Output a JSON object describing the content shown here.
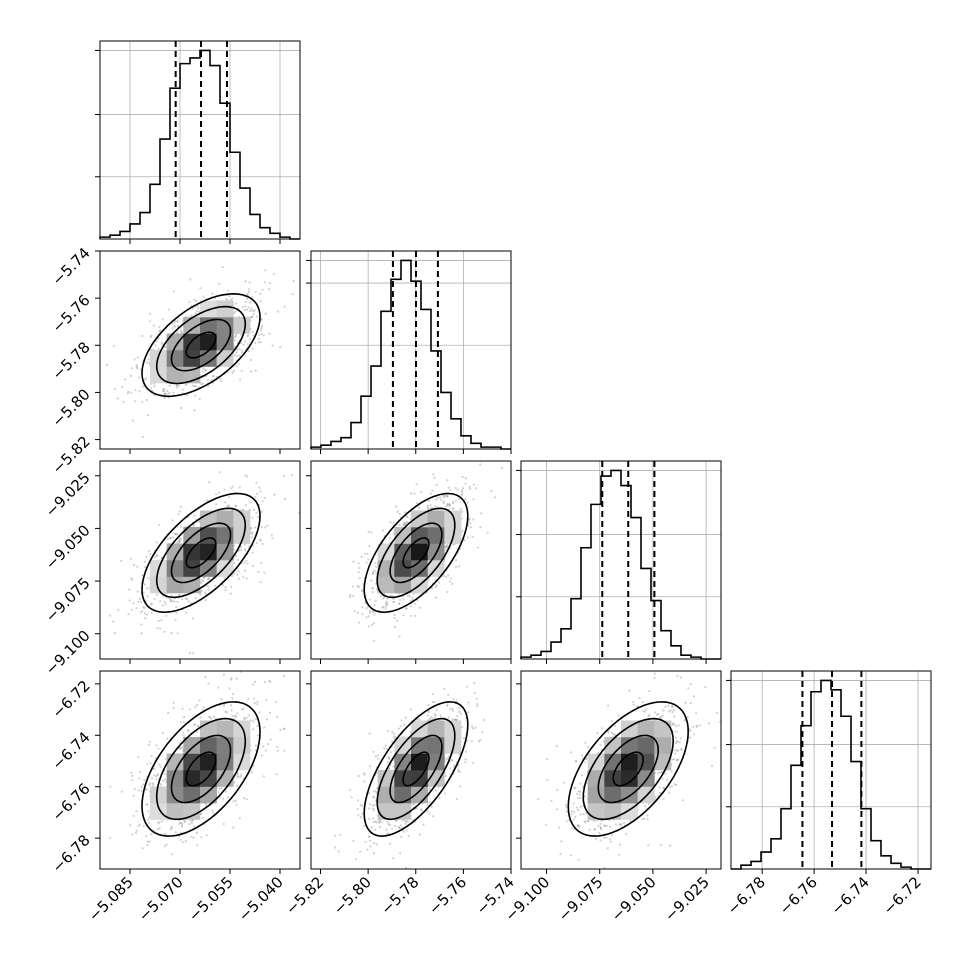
{
  "chart_data": {
    "type": "corner",
    "description_of_parameters": "four parameters (unlabeled) shown as a corner plot of 1D histograms and 2D density contours",
    "grid": true,
    "quantile_lines": "dashed",
    "parameters": [
      {
        "range": [
          -5.094,
          -5.034
        ],
        "ticks": [
          -5.085,
          -5.07,
          -5.055,
          -5.04
        ],
        "tick_labels": [
          "−5.085",
          "−5.070",
          "−5.055",
          "−5.040"
        ],
        "quantiles": [
          -5.0713,
          -5.0637,
          -5.0559
        ],
        "hist": [
          0.01,
          0.02,
          0.04,
          0.08,
          0.14,
          0.29,
          0.53,
          0.8,
          0.93,
          0.96,
          1.0,
          0.92,
          0.72,
          0.46,
          0.27,
          0.13,
          0.06,
          0.03,
          0.01,
          0.0
        ],
        "hist_ticks": [
          0.33,
          0.66
        ]
      },
      {
        "range": [
          -5.824,
          -5.74
        ],
        "ticks": [
          -5.82,
          -5.8,
          -5.78,
          -5.76,
          -5.74
        ],
        "tick_labels": [
          "−5.82",
          "−5.80",
          "−5.78",
          "−5.76",
          "−5.74"
        ],
        "quantiles": [
          -5.7896,
          -5.7799,
          -5.7707
        ],
        "hist": [
          0.01,
          0.02,
          0.04,
          0.06,
          0.14,
          0.28,
          0.44,
          0.73,
          0.9,
          1.0,
          0.89,
          0.74,
          0.52,
          0.3,
          0.16,
          0.07,
          0.03,
          0.01,
          0.01,
          0.0
        ],
        "hist_ticks": [
          0.55,
          0.88
        ]
      },
      {
        "range": [
          -9.112,
          -9.018
        ],
        "ticks": [
          -9.1,
          -9.075,
          -9.05,
          -9.025
        ],
        "tick_labels": [
          "−9.100",
          "−9.075",
          "−9.050",
          "−9.025"
        ],
        "quantiles": [
          -9.0738,
          -9.0616,
          -9.0493
        ],
        "hist": [
          0.01,
          0.02,
          0.04,
          0.09,
          0.16,
          0.32,
          0.59,
          0.82,
          0.97,
          1.0,
          0.92,
          0.75,
          0.48,
          0.31,
          0.15,
          0.07,
          0.02,
          0.01,
          0.0,
          0.0
        ],
        "hist_ticks": [
          0.33,
          0.66
        ]
      },
      {
        "range": [
          -6.792,
          -6.715
        ],
        "ticks": [
          -6.78,
          -6.76,
          -6.74,
          -6.72
        ],
        "tick_labels": [
          "−6.78",
          "−6.76",
          "−6.74",
          "−6.72"
        ],
        "quantiles": [
          -6.7645,
          -6.7531,
          -6.7418
        ],
        "hist": [
          0.0,
          0.02,
          0.04,
          0.09,
          0.16,
          0.32,
          0.55,
          0.76,
          0.94,
          1.0,
          0.95,
          0.81,
          0.57,
          0.32,
          0.15,
          0.07,
          0.03,
          0.01,
          0.0,
          0.0
        ],
        "hist_ticks": [
          0.33,
          0.66
        ]
      }
    ],
    "correlations": {
      "1-0": 0.55,
      "2-0": 0.62,
      "2-1": 0.62,
      "3-0": 0.55,
      "3-1": 0.66,
      "3-2": 0.56
    },
    "colors": {
      "line": "#000000",
      "grid": "#b0b0b0",
      "scatter": "#9a9a9a"
    }
  }
}
